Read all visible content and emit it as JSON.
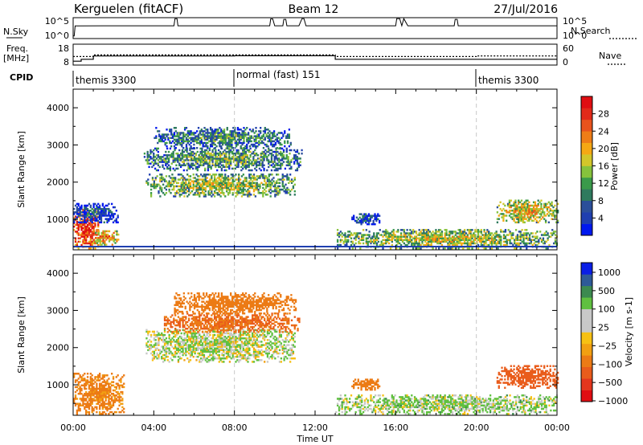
{
  "header": {
    "site": "Kerguelen (fitACF)",
    "beam": "Beam 12",
    "date": "27/Jul/2016"
  },
  "chart_data": [
    {
      "type": "line",
      "panel": "noise",
      "left_label": "N.Sky",
      "right_label": "N.Search",
      "left_ticks": [
        "10^5",
        "10^0"
      ],
      "right_ticks": [
        "10^5",
        "10^0"
      ],
      "scale": "log",
      "ylim": [
        1,
        100000
      ],
      "x_hours": [
        0,
        0.05,
        0.1,
        2,
        3,
        4.7,
        5.0,
        5.05,
        5.15,
        5.2,
        7,
        9,
        9.75,
        9.8,
        9.9,
        10.0,
        10.4,
        10.45,
        10.55,
        10.6,
        11.2,
        11.35,
        11.45,
        11.55,
        11.7,
        14,
        16.0,
        16.05,
        16.2,
        16.3,
        16.4,
        16.6,
        17,
        18,
        18.9,
        18.95,
        19.05,
        19.1,
        20,
        21,
        22,
        23,
        24
      ],
      "n_sky": [
        3,
        3,
        1200,
        1300,
        1300,
        1300,
        1300,
        90000,
        90000,
        1300,
        1300,
        1300,
        1300,
        80000,
        80000,
        1300,
        1300,
        60000,
        60000,
        1300,
        1300,
        90000,
        90000,
        1300,
        1300,
        1300,
        1300,
        90000,
        90000,
        1300,
        90000,
        1300,
        1300,
        1300,
        1300,
        60000,
        60000,
        1300,
        1300,
        1300,
        1300,
        1300,
        1300
      ],
      "n_search": []
    },
    {
      "type": "line",
      "panel": "frequency",
      "left_label": "Freq.",
      "left_unit": "[MHz]",
      "right_label": "Nave",
      "left_ticks": [
        18,
        8
      ],
      "right_ticks": [
        60,
        0
      ],
      "freq_ylim": [
        8,
        18
      ],
      "nave_ylim": [
        0,
        60
      ],
      "x_hours": [
        0,
        0.4,
        0.4,
        1.0,
        1.0,
        8.0,
        8.0,
        13.0,
        13.0,
        20.0,
        20.0,
        24.0
      ],
      "freq_mhz": [
        9.6,
        9.6,
        10.6,
        10.6,
        12.3,
        12.3,
        12.4,
        12.4,
        10.6,
        10.6,
        10.6,
        10.6
      ],
      "nave_x_hours": [
        0,
        1.0,
        1.0,
        13.0,
        13.0,
        20.0,
        20.0,
        24.0
      ],
      "nave": [
        24,
        24,
        29,
        29,
        24,
        24,
        26,
        26
      ]
    },
    {
      "type": "table",
      "panel": "cpid",
      "label": "CPID",
      "segments": [
        {
          "start_hour": 0,
          "end_hour": 8,
          "name": "themis 3300"
        },
        {
          "start_hour": 8,
          "end_hour": 20,
          "name": "normal (fast) 151"
        },
        {
          "start_hour": 20,
          "end_hour": 24,
          "name": "themis 3300"
        }
      ]
    },
    {
      "type": "heatmap",
      "panel": "power",
      "ylabel": "Slant Range [km]",
      "xlim_hours": [
        0,
        24
      ],
      "ylim": [
        180,
        4500
      ],
      "yticks": [
        1000,
        2000,
        3000,
        4000
      ],
      "colorbar": {
        "label": "Power [dB]",
        "ticks": [
          4,
          8,
          12,
          16,
          20,
          24,
          28
        ],
        "range": [
          0,
          32
        ],
        "colors": [
          "#0018ee",
          "#1f3fb0",
          "#2b4f9a",
          "#2f7a5e",
          "#3a9a4a",
          "#86c23c",
          "#d2c62a",
          "#f5a814",
          "#ee7d17",
          "#e8531d",
          "#e22a1a",
          "#e00e12"
        ]
      },
      "regions": [
        {
          "t": [
            0,
            1.2
          ],
          "r": [
            200,
            1250
          ],
          "value": 30
        },
        {
          "t": [
            1.0,
            2.2
          ],
          "r": [
            300,
            700
          ],
          "value": 24
        },
        {
          "t": [
            0,
            2.2
          ],
          "r": [
            900,
            1400
          ],
          "value": 8
        },
        {
          "t": [
            3.5,
            11.3
          ],
          "r": [
            2300,
            2900
          ],
          "value": 14
        },
        {
          "t": [
            3.6,
            11.0
          ],
          "r": [
            1600,
            2200
          ],
          "value": 17
        },
        {
          "t": [
            4.0,
            10.8
          ],
          "r": [
            2900,
            3450
          ],
          "value": 12
        },
        {
          "t": [
            13.8,
            15.2
          ],
          "r": [
            850,
            1150
          ],
          "value": 8
        },
        {
          "t": [
            13.0,
            24
          ],
          "r": [
            200,
            700
          ],
          "value": 18
        },
        {
          "t": [
            21.0,
            24
          ],
          "r": [
            900,
            1500
          ],
          "value": 20
        }
      ]
    },
    {
      "type": "heatmap",
      "panel": "velocity",
      "ylabel": "Slant Range [km]",
      "xlabel": "Time UT",
      "xticks": [
        "00:00",
        "04:00",
        "08:00",
        "12:00",
        "16:00",
        "20:00",
        "00:00"
      ],
      "xlim_hours": [
        0,
        24
      ],
      "ylim": [
        180,
        4500
      ],
      "yticks": [
        1000,
        2000,
        3000,
        4000
      ],
      "colorbar": {
        "label": "Velocity [m s-1]",
        "ticks": [
          "1000",
          "500",
          "100",
          "25",
          "−25",
          "−100",
          "−500",
          "−1000"
        ],
        "colors": [
          "#0a1ee6",
          "#2e5a98",
          "#3c8a50",
          "#60c040",
          "#c8c8c8",
          "#c8c8c8",
          "#f7c114",
          "#f2a012",
          "#ec7b15",
          "#e95c1b",
          "#e4361d",
          "#e00e12"
        ]
      },
      "regions": [
        {
          "t": [
            0,
            2.5
          ],
          "r": [
            200,
            1300
          ],
          "value": -150
        },
        {
          "t": [
            3.6,
            11.0
          ],
          "r": [
            1600,
            2500
          ],
          "value": 10
        },
        {
          "t": [
            4.5,
            11.2
          ],
          "r": [
            2400,
            2900
          ],
          "value": -300
        },
        {
          "t": [
            5.0,
            11.0
          ],
          "r": [
            2900,
            3450
          ],
          "value": -200
        },
        {
          "t": [
            13.8,
            15.2
          ],
          "r": [
            850,
            1150
          ],
          "value": -200
        },
        {
          "t": [
            13.0,
            24
          ],
          "r": [
            200,
            700
          ],
          "value": 30
        },
        {
          "t": [
            21.0,
            24
          ],
          "r": [
            900,
            1500
          ],
          "value": -400
        }
      ]
    }
  ]
}
